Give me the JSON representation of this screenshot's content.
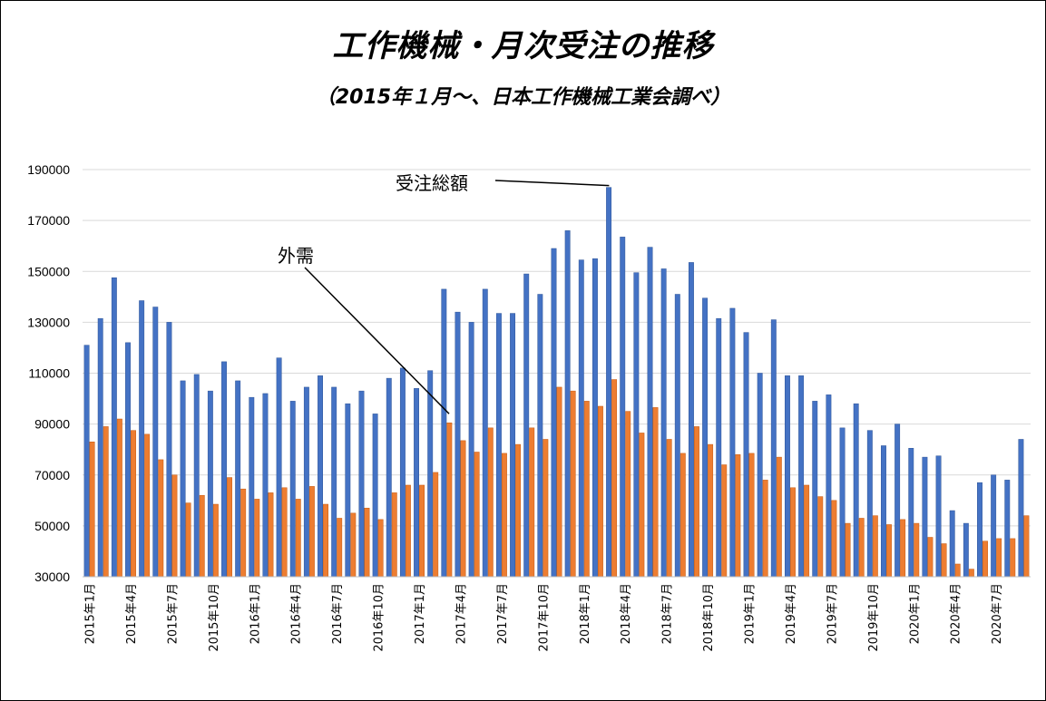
{
  "chart_data": {
    "type": "bar",
    "title": "工作機械・月次受注の推移",
    "subtitle": "（2015年１月～、日本工作機械工業会調べ）",
    "ylim": [
      30000,
      190000
    ],
    "yticks": [
      "30000",
      "50000",
      "70000",
      "90000",
      "110000",
      "130000",
      "150000",
      "170000",
      "190000"
    ],
    "grid": true,
    "legend": "none",
    "categories": [
      "2015年1月",
      "2015年2月",
      "2015年3月",
      "2015年4月",
      "2015年5月",
      "2015年6月",
      "2015年7月",
      "2015年8月",
      "2015年9月",
      "2015年10月",
      "2015年11月",
      "2015年12月",
      "2016年1月",
      "2016年2月",
      "2016年3月",
      "2016年4月",
      "2016年5月",
      "2016年6月",
      "2016年7月",
      "2016年8月",
      "2016年9月",
      "2016年10月",
      "2016年11月",
      "2016年12月",
      "2017年1月",
      "2017年2月",
      "2017年3月",
      "2017年4月",
      "2017年5月",
      "2017年6月",
      "2017年7月",
      "2017年8月",
      "2017年9月",
      "2017年10月",
      "2017年11月",
      "2017年12月",
      "2018年1月",
      "2018年2月",
      "2018年3月",
      "2018年4月",
      "2018年5月",
      "2018年6月",
      "2018年7月",
      "2018年8月",
      "2018年9月",
      "2018年10月",
      "2018年11月",
      "2018年12月",
      "2019年1月",
      "2019年2月",
      "2019年3月",
      "2019年4月",
      "2019年5月",
      "2019年6月",
      "2019年7月",
      "2019年8月",
      "2019年9月",
      "2019年10月",
      "2019年11月",
      "2019年12月",
      "2020年1月",
      "2020年2月",
      "2020年3月",
      "2020年4月",
      "2020年5月",
      "2020年6月",
      "2020年7月",
      "2020年8月",
      "2020年9月"
    ],
    "xtick_labels": [
      "2015年1月",
      "2015年4月",
      "2015年7月",
      "2015年10月",
      "2016年1月",
      "2016年4月",
      "2016年7月",
      "2016年10月",
      "2017年1月",
      "2017年4月",
      "2017年7月",
      "2017年10月",
      "2018年1月",
      "2018年4月",
      "2018年7月",
      "2018年10月",
      "2019年1月",
      "2019年4月",
      "2019年7月",
      "2019年10月",
      "2020年1月",
      "2020年4月",
      "2020年7月"
    ],
    "series": [
      {
        "name": "受注総額",
        "color": "#4472c4",
        "values": [
          121000,
          131500,
          147500,
          122000,
          138500,
          136000,
          130000,
          107000,
          109500,
          103000,
          114500,
          107000,
          100500,
          102000,
          116000,
          99000,
          104500,
          109000,
          104500,
          98000,
          103000,
          94000,
          108000,
          112000,
          104000,
          111000,
          143000,
          134000,
          130000,
          143000,
          133500,
          133500,
          149000,
          141000,
          159000,
          166000,
          154500,
          155000,
          183000,
          163500,
          149500,
          159500,
          151000,
          141000,
          153500,
          139500,
          131500,
          135500,
          126000,
          110000,
          131000,
          109000,
          109000,
          99000,
          101500,
          88500,
          98000,
          87500,
          81500,
          90000,
          80500,
          77000,
          77500,
          56000,
          51000,
          67000,
          70000,
          68000,
          84000
        ]
      },
      {
        "name": "外需",
        "color": "#ed7d31",
        "values": [
          83000,
          89000,
          92000,
          87500,
          86000,
          76000,
          70000,
          59000,
          62000,
          58500,
          69000,
          64500,
          60500,
          63000,
          65000,
          60500,
          65500,
          58500,
          53000,
          55000,
          57000,
          52500,
          63000,
          66000,
          66000,
          71000,
          90500,
          83500,
          79000,
          88500,
          78500,
          82000,
          88500,
          84000,
          104500,
          103000,
          99000,
          97000,
          107500,
          95000,
          86500,
          96500,
          84000,
          78500,
          89000,
          82000,
          74000,
          78000,
          78500,
          68000,
          77000,
          65000,
          66000,
          61500,
          60000,
          51000,
          53000,
          54000,
          50500,
          52500,
          51000,
          45500,
          43000,
          35000,
          33000,
          44000,
          45000,
          45000,
          54000
        ]
      }
    ],
    "annotations": [
      {
        "text": "受注総額",
        "points_to": "2018年3月"
      },
      {
        "text": "外需",
        "points_to": "2017年3月"
      }
    ]
  }
}
